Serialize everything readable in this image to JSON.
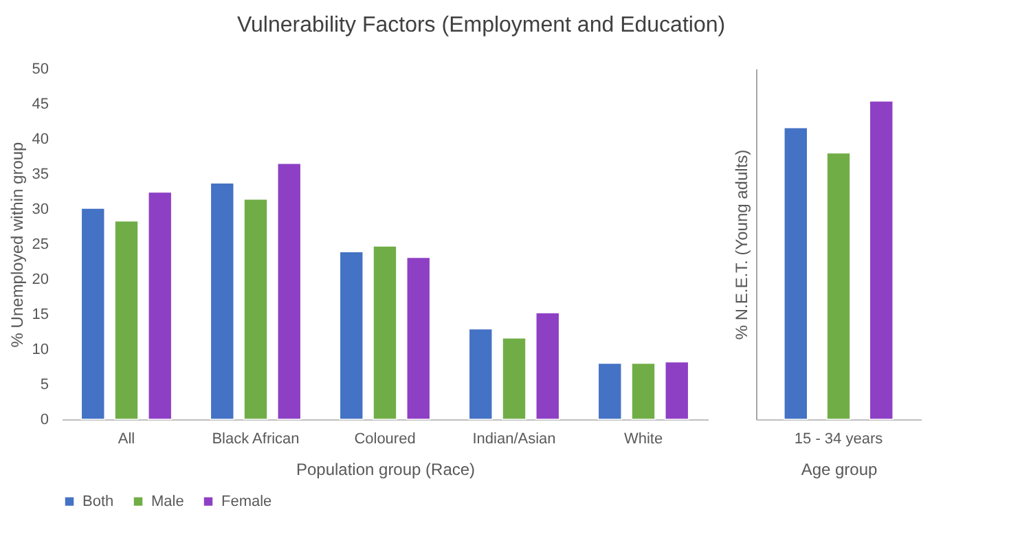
{
  "chart_data": [
    {
      "type": "bar",
      "title": "Vulnerability Factors (Employment and Education)",
      "xlabel": "Population group (Race)",
      "ylabel": "% Unemployed within group",
      "categories": [
        "All",
        "Black African",
        "Coloured",
        "Indian/Asian",
        "White"
      ],
      "series": [
        {
          "name": "Both",
          "color": "#4472c4",
          "values": [
            30.1,
            33.7,
            23.9,
            12.9,
            8.0
          ]
        },
        {
          "name": "Male",
          "color": "#70ad47",
          "values": [
            28.3,
            31.4,
            24.7,
            11.6,
            8.0
          ]
        },
        {
          "name": "Female",
          "color": "#8e40c4",
          "values": [
            32.4,
            36.5,
            23.1,
            15.2,
            8.2
          ]
        }
      ],
      "ylim": [
        0,
        50
      ],
      "yticks": [
        0,
        5,
        10,
        15,
        20,
        25,
        30,
        35,
        40,
        45,
        50
      ],
      "legend": "bottom",
      "grid": false
    },
    {
      "type": "bar",
      "xlabel": "Age group",
      "ylabel": "% N.E.E.T. (Young adults)",
      "categories": [
        "15 - 34 years"
      ],
      "series": [
        {
          "color": "#4472c4",
          "values": [
            41.6
          ]
        },
        {
          "color": "#70ad47",
          "values": [
            38.0
          ]
        },
        {
          "color": "#8e40c4",
          "values": [
            45.4
          ]
        }
      ],
      "ylim": [
        0,
        50
      ],
      "yticks": [
        0,
        5,
        10,
        15,
        20,
        25,
        30,
        35,
        40,
        45,
        50
      ],
      "tick_labels": "x",
      "grid": false
    }
  ]
}
